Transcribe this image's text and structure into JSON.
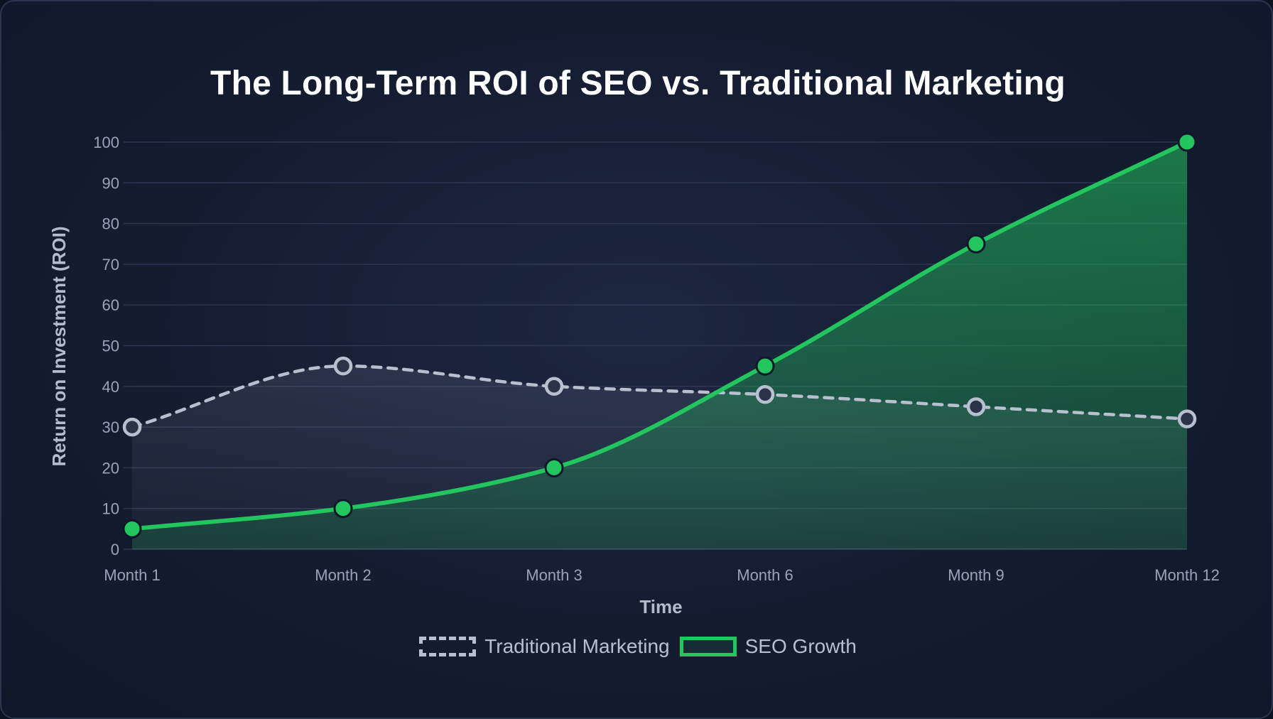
{
  "chart_data": {
    "type": "line",
    "title": "The Long-Term ROI of SEO vs. Traditional Marketing",
    "xlabel": "Time",
    "ylabel": "Return on Investment (ROI)",
    "categories": [
      "Month 1",
      "Month 2",
      "Month 3",
      "Month 6",
      "Month 9",
      "Month 12"
    ],
    "ylim": [
      0,
      100
    ],
    "yticks": [
      0,
      10,
      20,
      30,
      40,
      50,
      60,
      70,
      80,
      90,
      100
    ],
    "grid": true,
    "legend_position": "bottom",
    "series": [
      {
        "name": "Traditional Marketing",
        "values": [
          30,
          45,
          40,
          38,
          35,
          32
        ],
        "color": "#b8c0cf",
        "style": "dashed"
      },
      {
        "name": "SEO Growth",
        "values": [
          5,
          10,
          20,
          45,
          75,
          100
        ],
        "color": "#22c55e",
        "style": "solid"
      }
    ]
  }
}
